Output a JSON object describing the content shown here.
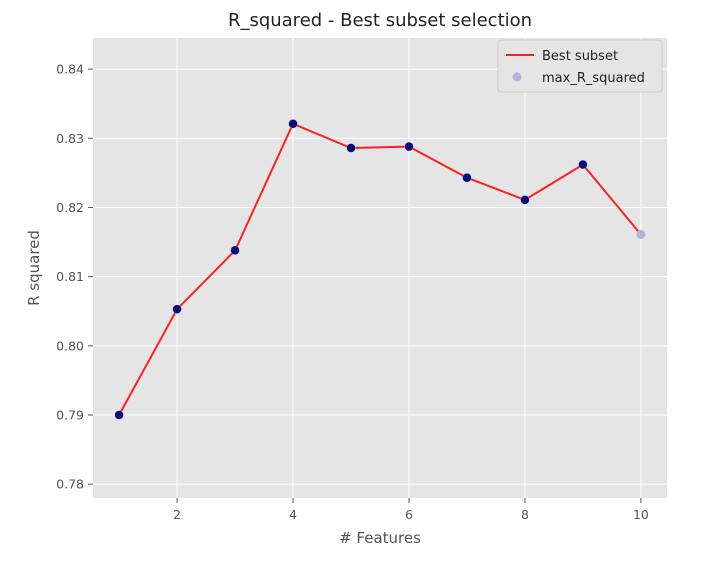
{
  "chart_data": {
    "type": "line",
    "title": "R_squared - Best subset selection",
    "xlabel": "# Features",
    "ylabel": "R squared",
    "xlim": [
      0.55,
      10.45
    ],
    "ylim": [
      0.778,
      0.8445
    ],
    "xticks": [
      2,
      4,
      6,
      8,
      10
    ],
    "yticks": [
      0.78,
      0.79,
      0.8,
      0.81,
      0.82,
      0.83,
      0.84
    ],
    "ytick_labels": [
      "0.78",
      "0.79",
      "0.80",
      "0.81",
      "0.82",
      "0.83",
      "0.84"
    ],
    "grid": true,
    "legend_position": "top-right",
    "series": [
      {
        "name": "Best subset",
        "type": "line",
        "color": "#ff2020",
        "x": [
          1,
          2,
          3,
          4,
          5,
          6,
          7,
          8,
          9,
          10
        ],
        "y": [
          0.79,
          0.8053,
          0.8138,
          0.8321,
          0.8286,
          0.8288,
          0.8243,
          0.8211,
          0.8262,
          0.8161
        ]
      },
      {
        "name": "max_R_squared",
        "type": "scatter",
        "color": "#b3b3d9",
        "x": [
          1,
          2,
          3,
          4,
          5,
          6,
          7,
          8,
          9,
          10
        ],
        "y": [
          0.79,
          0.8053,
          0.8138,
          0.8321,
          0.8286,
          0.8288,
          0.8243,
          0.8211,
          0.8262,
          0.8161
        ]
      }
    ],
    "highlight_points": {
      "color": "#0a0a7a",
      "x": [
        1,
        2,
        3,
        4,
        5,
        6,
        7,
        8,
        9
      ],
      "y": [
        0.79,
        0.8053,
        0.8138,
        0.8321,
        0.8286,
        0.8288,
        0.8243,
        0.8211,
        0.8262
      ]
    },
    "colors": {
      "plot_background": "#e5e5e5",
      "grid": "#ffffff"
    }
  }
}
